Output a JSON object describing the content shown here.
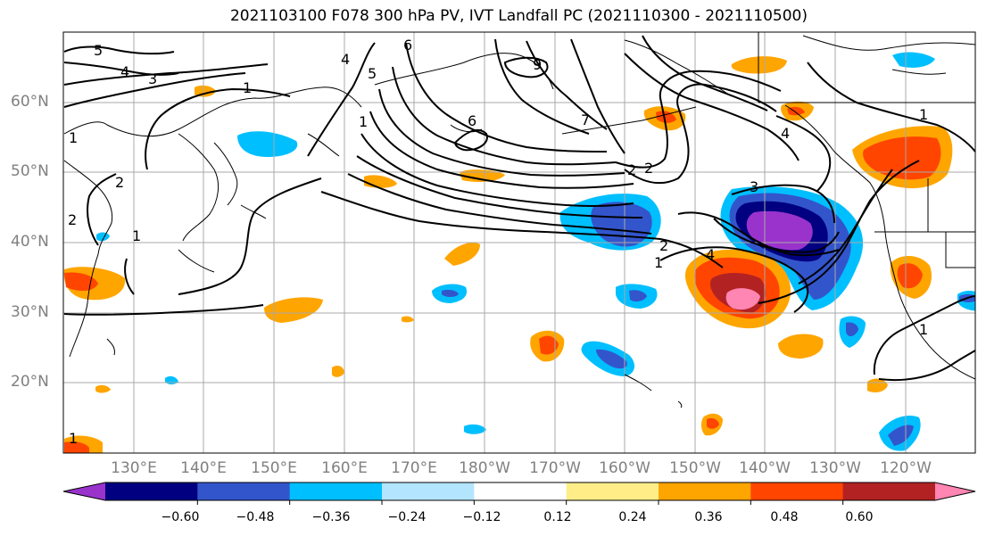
{
  "title": "2021103100 F078 300 hPa PV, IVT Landfall PC (2021110300 - 2021110500)",
  "lat_labels": [
    "60°N",
    "50°N",
    "40°N",
    "30°N",
    "20°N"
  ],
  "lon_labels": [
    "130°E",
    "140°E",
    "150°E",
    "160°E",
    "170°E",
    "180°W",
    "170°W",
    "160°W",
    "150°W",
    "140°W",
    "130°W",
    "120°W"
  ],
  "colorbar": {
    "colors": [
      "#9933cc",
      "#000080",
      "#3355cc",
      "#00bfff",
      "#b3e5ff",
      "#ffffff",
      "#ffee88",
      "#ffa500",
      "#ff4500",
      "#b22222",
      "#ff85b3"
    ],
    "labels": [
      "−0.60",
      "−0.48",
      "−0.36",
      "−0.24",
      "−0.12",
      "0.12",
      "0.24",
      "0.36",
      "0.48",
      "0.60"
    ]
  },
  "contour_labels": [
    "5",
    "4",
    "3",
    "1",
    "1",
    "2",
    "1",
    "2",
    "1",
    "4",
    "5",
    "6",
    "9",
    "6",
    "7",
    "2",
    "2",
    "1",
    "3",
    "2",
    "1",
    "4",
    "4",
    "1",
    "1"
  ]
}
